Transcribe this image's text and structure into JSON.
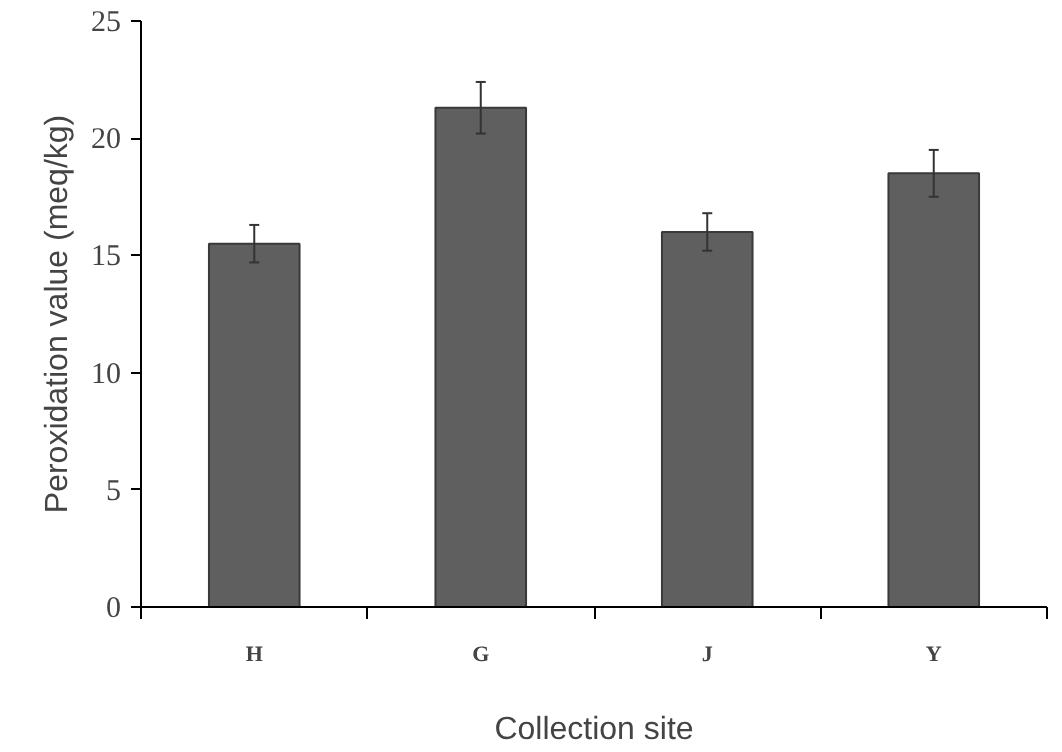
{
  "chart_data": {
    "type": "bar",
    "xlabel": "Collection site",
    "ylabel": "Peroxidation value (meq/kg)",
    "categories": [
      "H",
      "G",
      "J",
      "Y"
    ],
    "values": [
      15.5,
      21.3,
      16.0,
      18.5
    ],
    "errors": [
      0.8,
      1.1,
      0.8,
      1.0
    ],
    "color": "#5f5f5f",
    "ylim": [
      0,
      25
    ],
    "yticks": [
      0,
      5,
      10,
      15,
      20,
      25
    ],
    "grid": false
  }
}
